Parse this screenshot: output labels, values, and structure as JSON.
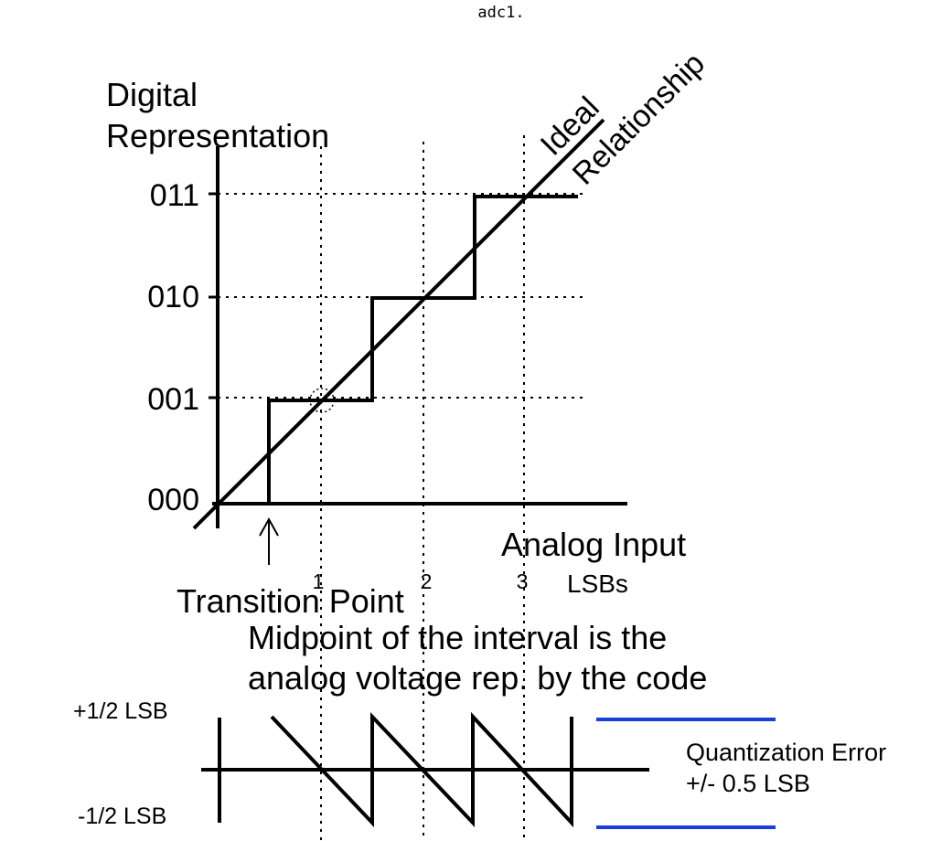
{
  "page_title": "adc1.",
  "labels": {
    "y_axis_line1": "Digital",
    "y_axis_line2": "Representation",
    "ideal_line1": "Ideal",
    "ideal_line2": "Relationship",
    "x_axis": "Analog Input",
    "x_unit": "LSBs",
    "transition_point": "Transition Point",
    "midpoint_line1": "Midpoint of the interval is the",
    "midpoint_line2": "analog voltage rep. by the code",
    "err_plus": "+1/2 LSB",
    "err_minus": "-1/2 LSB",
    "quant_line1": "Quantization Error",
    "quant_line2": "+/- 0.5 LSB"
  },
  "codes": [
    "000",
    "001",
    "010",
    "011"
  ],
  "x_ticks": [
    "1",
    "2",
    "3"
  ],
  "colors": {
    "ink": "#000000",
    "error_band": "#1a3fd6"
  }
}
